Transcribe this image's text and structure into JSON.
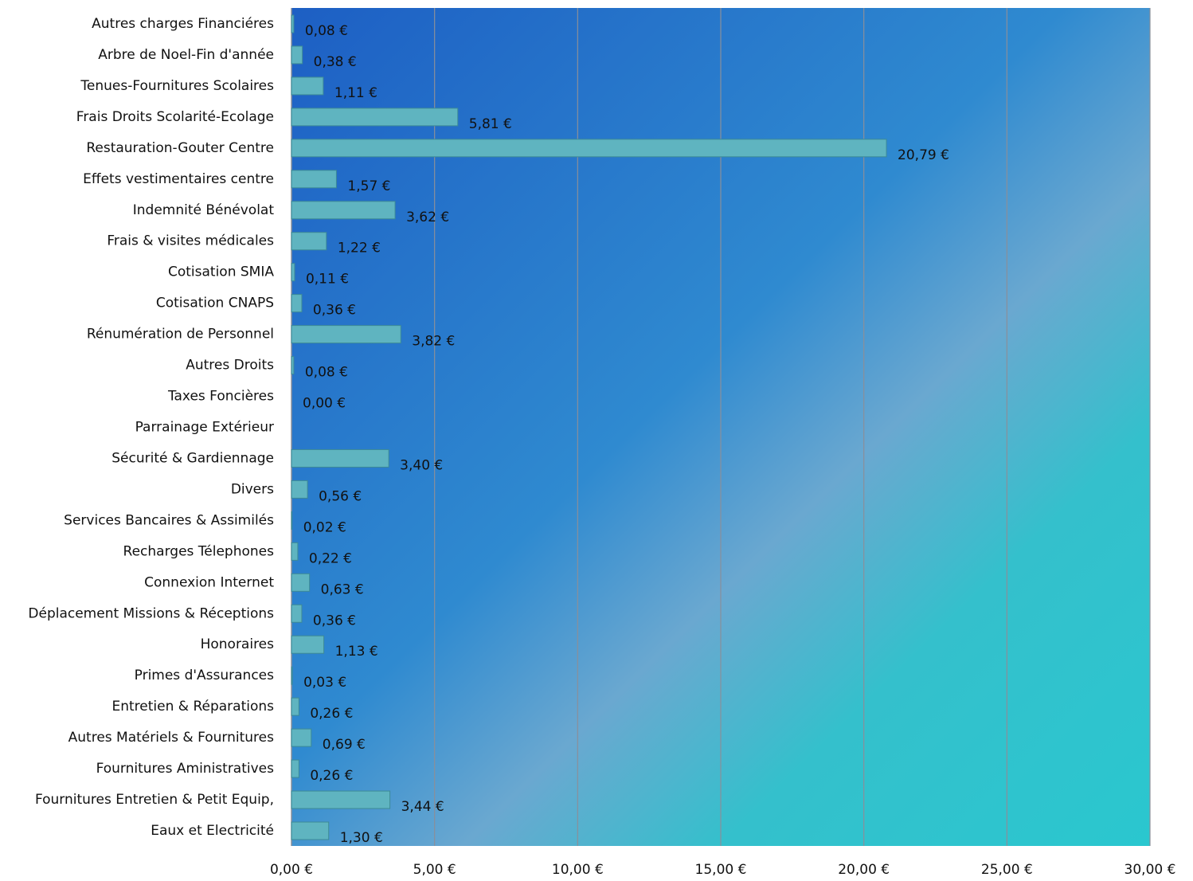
{
  "chart_data": {
    "type": "bar",
    "orientation": "horizontal",
    "categories": [
      "Autres charges Financiéres",
      "Arbre de Noel-Fin d'année",
      "Tenues-Fournitures Scolaires",
      "Frais Droits Scolarité-Ecolage",
      "Restauration-Gouter Centre",
      "Effets vestimentaires centre",
      "Indemnité Bénévolat",
      "Frais & visites médicales",
      "Cotisation SMIA",
      "Cotisation CNAPS",
      "Rénumération de Personnel",
      "Autres Droits",
      "Taxes Foncières",
      "Parrainage Extérieur",
      "Sécurité & Gardiennage",
      "Divers",
      "Services Bancaires & Assimilés",
      "Recharges Télephones",
      "Connexion Internet",
      "Déplacement Missions & Réceptions",
      "Honoraires",
      "Primes d'Assurances",
      "Entretien & Réparations",
      "Autres Matériels & Fournitures",
      "Fournitures Aministratives",
      "Fournitures Entretien & Petit Equip,",
      "Eaux  et Electricité"
    ],
    "values": [
      0.08,
      0.38,
      1.11,
      5.81,
      20.79,
      1.57,
      3.62,
      1.22,
      0.11,
      0.36,
      3.82,
      0.08,
      0.0,
      null,
      3.4,
      0.56,
      0.02,
      0.22,
      0.63,
      0.36,
      1.13,
      0.03,
      0.26,
      0.69,
      0.26,
      3.44,
      1.3
    ],
    "value_labels": [
      "0,08 €",
      "0,38 €",
      "1,11 €",
      "5,81 €",
      "20,79 €",
      "1,57 €",
      "3,62 €",
      "1,22 €",
      "0,11 €",
      "0,36 €",
      "3,82 €",
      "0,08 €",
      "0,00 €",
      null,
      "3,40 €",
      "0,56 €",
      "0,02 €",
      "0,22 €",
      "0,63 €",
      "0,36 €",
      "1,13 €",
      "0,03 €",
      "0,26 €",
      "0,69 €",
      "0,26 €",
      "3,44 €",
      "1,30 €"
    ],
    "color": "#5fb4c0",
    "xlim": [
      0,
      30
    ],
    "xticks": [
      {
        "value": 0,
        "label": "0,00 €"
      },
      {
        "value": 5,
        "label": "5,00 €"
      },
      {
        "value": 10,
        "label": "10,00 €"
      },
      {
        "value": 15,
        "label": "15,00 €"
      },
      {
        "value": 20,
        "label": "20,00 €"
      },
      {
        "value": 25,
        "label": "25,00 €"
      },
      {
        "value": 30,
        "label": "30,00 €"
      }
    ],
    "grid": true
  }
}
